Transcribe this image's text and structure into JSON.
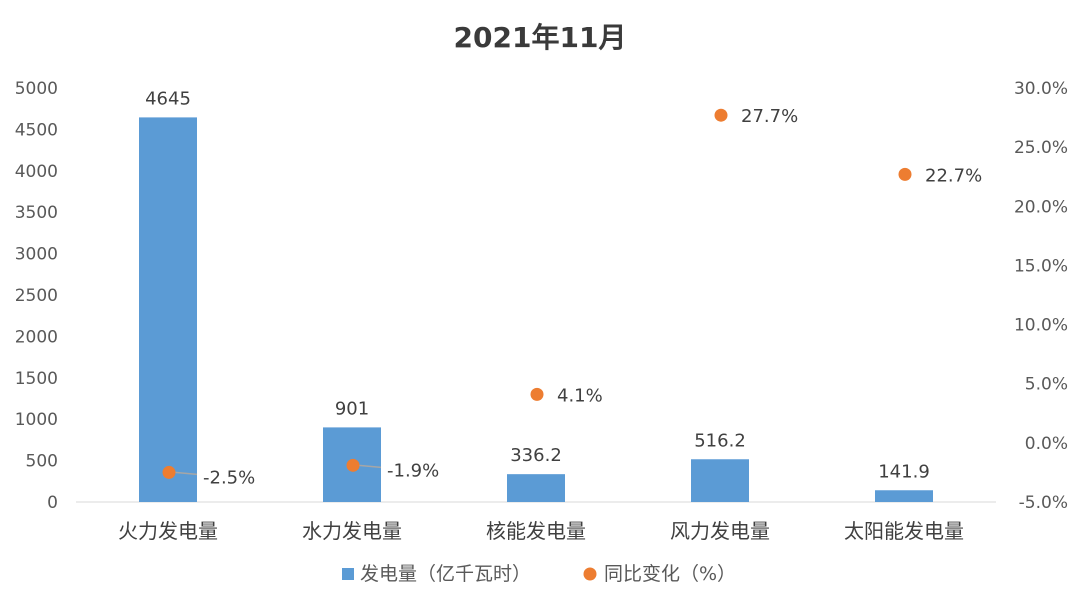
{
  "chart_data": {
    "type": "bar",
    "title": "2021年11月",
    "categories": [
      "火力发电量",
      "水力发电量",
      "核能发电量",
      "风力发电量",
      "太阳能发电量"
    ],
    "series": [
      {
        "name": "发电量（亿千瓦时）",
        "type": "bar",
        "axis": "left",
        "values": [
          4645,
          901,
          336.2,
          516.2,
          141.9
        ],
        "labels": [
          "4645",
          "901",
          "336.2",
          "516.2",
          "141.9"
        ],
        "color": "#5b9bd5"
      },
      {
        "name": "同比变化（%）",
        "type": "scatter",
        "axis": "right",
        "values": [
          -2.5,
          -1.9,
          4.1,
          27.7,
          22.7
        ],
        "labels": [
          "-2.5%",
          "-1.9%",
          "4.1%",
          "27.7%",
          "22.7%"
        ],
        "color": "#ed7d31"
      }
    ],
    "y_left": {
      "min": 0,
      "max": 5000,
      "step": 500,
      "ticks": [
        "0",
        "500",
        "1000",
        "1500",
        "2000",
        "2500",
        "3000",
        "3500",
        "4000",
        "4500",
        "5000"
      ]
    },
    "y_right": {
      "min": -5,
      "max": 30,
      "step": 5,
      "ticks": [
        "-5.0%",
        "0.0%",
        "5.0%",
        "10.0%",
        "15.0%",
        "20.0%",
        "25.0%",
        "30.0%"
      ]
    },
    "legend_position": "bottom",
    "grid": false
  }
}
